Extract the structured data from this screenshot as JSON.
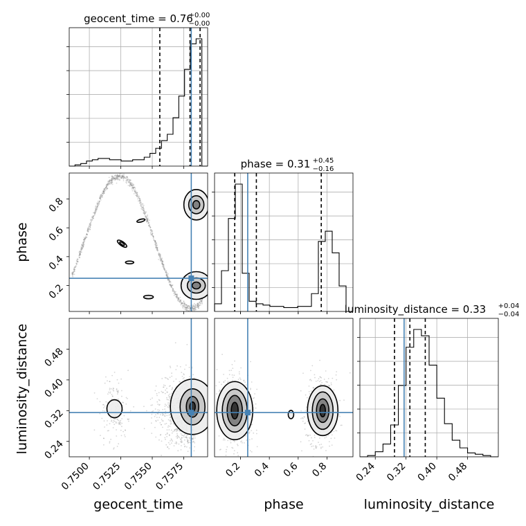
{
  "chart_data": {
    "type": "corner",
    "parameters": [
      "geocent_time",
      "phase",
      "luminosity_distance"
    ],
    "axis_labels": [
      "geocent_time",
      "phase",
      "luminosity_distance"
    ],
    "truths": [
      0.7581,
      0.25,
      0.315
    ],
    "ranges": [
      [
        0.7484,
        0.7594
      ],
      [
        0.02,
        0.98
      ],
      [
        0.2,
        0.56
      ]
    ],
    "ticks": {
      "geocent_time": [
        "0.7500",
        "0.7525",
        "0.7550",
        "0.7575"
      ],
      "phase": [
        "0.2",
        "0.4",
        "0.6",
        "0.8"
      ],
      "luminosity_distance": [
        "0.24",
        "0.32",
        "0.40",
        "0.48"
      ]
    },
    "tick_values": {
      "geocent_time": [
        0.75,
        0.7525,
        0.755,
        0.7575
      ],
      "phase": [
        0.2,
        0.4,
        0.6,
        0.8
      ],
      "luminosity_distance": [
        0.24,
        0.32,
        0.4,
        0.48
      ]
    },
    "diag_titles": [
      {
        "param": "geocent_time",
        "text": "geocent_time = 0.76",
        "sup": "+0.00",
        "sub": "−0.00"
      },
      {
        "param": "phase",
        "text": "phase = 0.31",
        "sup": "+0.45",
        "sub": "−0.16"
      },
      {
        "param": "luminosity_distance",
        "text": "luminosity_distance = 0.33",
        "sup": "+0.04",
        "sub": "−0.04"
      }
    ],
    "quantiles": {
      "geocent_time": [
        0.7556,
        0.758,
        0.7588
      ],
      "phase": [
        0.16,
        0.31,
        0.76
      ],
      "luminosity_distance": [
        0.29,
        0.33,
        0.37
      ]
    },
    "histograms": {
      "geocent_time": [
        0.0,
        0.01,
        0.02,
        0.04,
        0.05,
        0.06,
        0.06,
        0.05,
        0.05,
        0.04,
        0.04,
        0.05,
        0.05,
        0.07,
        0.1,
        0.14,
        0.2,
        0.25,
        0.38,
        0.55,
        0.76,
        0.96,
        1.0,
        0.0
      ],
      "phase": [
        0.06,
        0.32,
        0.73,
        1.0,
        0.3,
        0.08,
        0.06,
        0.05,
        0.04,
        0.04,
        0.03,
        0.03,
        0.04,
        0.04,
        0.14,
        0.55,
        0.63,
        0.46,
        0.2,
        0.0
      ],
      "luminosity_distance": [
        0.0,
        0.01,
        0.04,
        0.1,
        0.25,
        0.56,
        0.86,
        1.0,
        0.95,
        0.72,
        0.46,
        0.26,
        0.13,
        0.07,
        0.03,
        0.02,
        0.01,
        0.0
      ]
    }
  }
}
